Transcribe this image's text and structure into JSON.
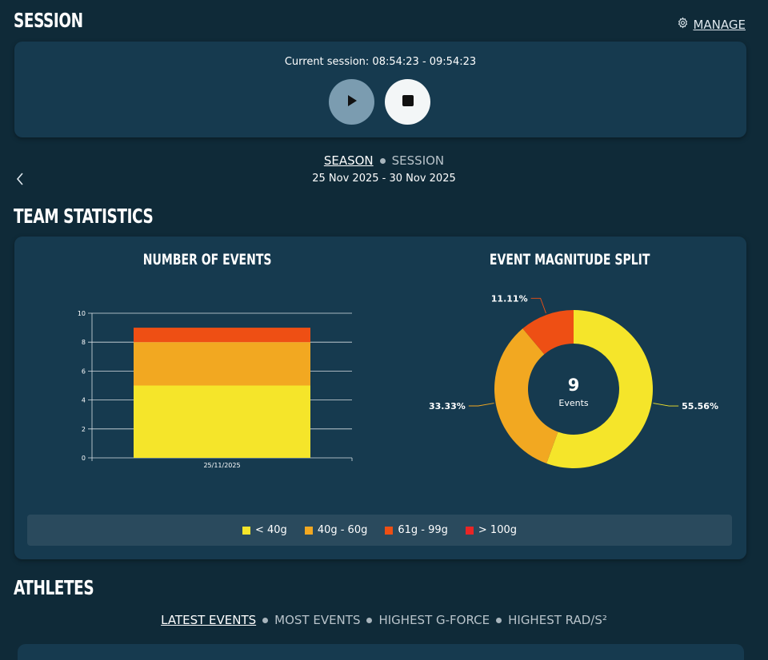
{
  "session": {
    "title": "SESSION",
    "manage_label": "MANAGE",
    "current_session": "Current session: 08:54:23 - 09:54:23"
  },
  "period_toggle": {
    "active": "SEASON",
    "inactive": "SESSION",
    "date_range": "25 Nov 2025 - 30 Nov 2025"
  },
  "team_stats": {
    "title": "TEAM STATISTICS",
    "bar_title": "NUMBER OF EVENTS",
    "donut_title": "EVENT MAGNITUDE SPLIT",
    "donut_center_value": "9",
    "donut_center_label": "Events",
    "legend": [
      {
        "label": "< 40g",
        "color": "#f5e52a"
      },
      {
        "label": "40g - 60g",
        "color": "#f2a821"
      },
      {
        "label": "61g - 99g",
        "color": "#ee4f14"
      },
      {
        "label": "> 100g",
        "color": "#e92525"
      }
    ]
  },
  "chart_data": [
    {
      "type": "bar",
      "stacked": true,
      "categories": [
        "25/11/2025"
      ],
      "series": [
        {
          "name": "< 40g",
          "values": [
            5
          ],
          "color": "#f5e52a"
        },
        {
          "name": "40g - 60g",
          "values": [
            3
          ],
          "color": "#f2a821"
        },
        {
          "name": "61g - 99g",
          "values": [
            1
          ],
          "color": "#ee4f14"
        }
      ],
      "yticks": [
        "0",
        "2",
        "4",
        "6",
        "8",
        "10"
      ],
      "ylim": [
        0,
        10
      ],
      "grid": true
    },
    {
      "type": "pie",
      "donut": true,
      "slices": [
        {
          "name": "< 40g",
          "value": 55.56,
          "label": "55.56%",
          "color": "#f5e52a"
        },
        {
          "name": "40g - 60g",
          "value": 33.33,
          "label": "33.33%",
          "color": "#f2a821"
        },
        {
          "name": "61g - 99g",
          "value": 11.11,
          "label": "11.11%",
          "color": "#ee4f14"
        }
      ]
    }
  ],
  "athletes": {
    "title": "ATHLETES",
    "tabs": [
      "LATEST EVENTS",
      "MOST EVENTS",
      "HIGHEST G-FORCE",
      "HIGHEST RAD/S²"
    ]
  }
}
